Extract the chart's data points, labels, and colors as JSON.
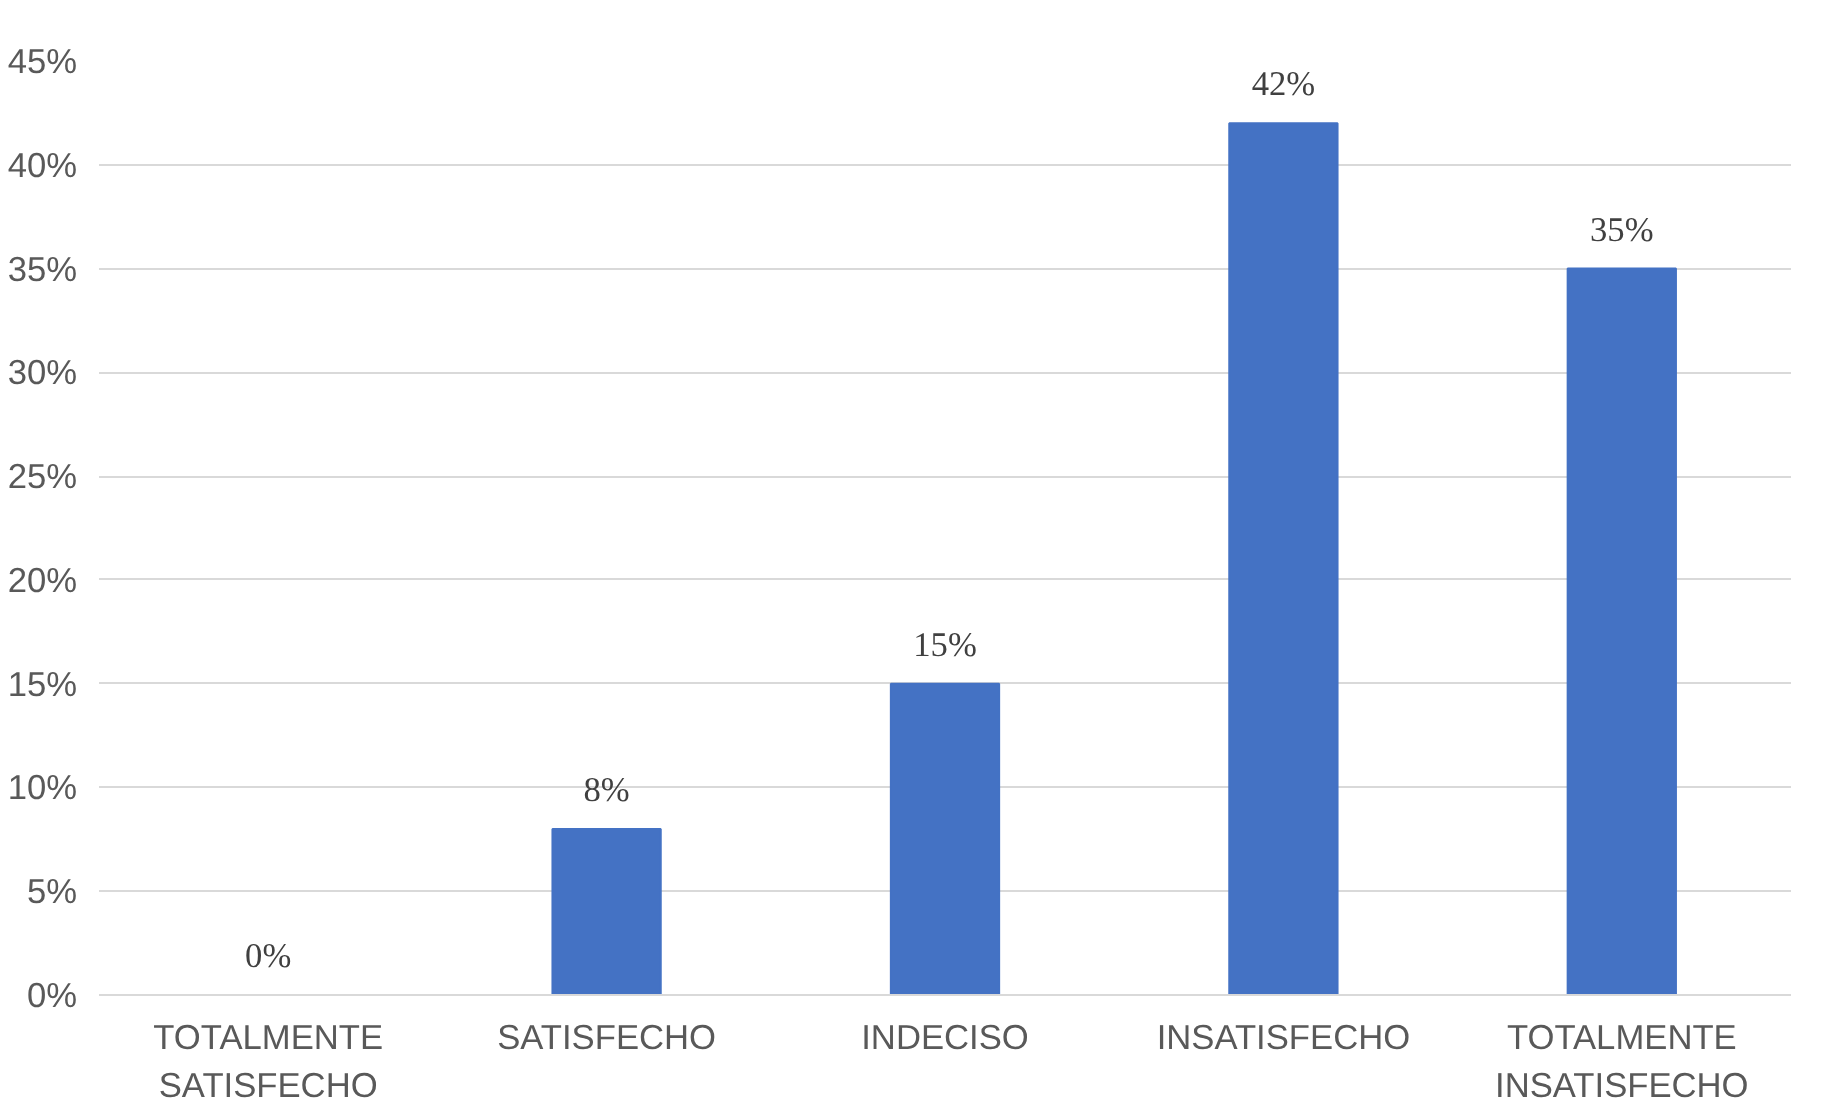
{
  "chart_data": {
    "type": "bar",
    "categories": [
      "TOTALMENTE SATISFECHO",
      "SATISFECHO",
      "INDECISO",
      "INSATISFECHO",
      "TOTALMENTE INSATISFECHO"
    ],
    "values": [
      0,
      8,
      15,
      42,
      35
    ],
    "color": "#4472c4",
    "value_labels": [
      "0%",
      "8%",
      "15%",
      "42%",
      "35%"
    ],
    "ylim": [
      0,
      45
    ],
    "yticks": [
      {
        "value": 0,
        "label": "0%"
      },
      {
        "value": 5,
        "label": "5%"
      },
      {
        "value": 10,
        "label": "10%"
      },
      {
        "value": 15,
        "label": "15%"
      },
      {
        "value": 20,
        "label": "20%"
      },
      {
        "value": 25,
        "label": "25%"
      },
      {
        "value": 30,
        "label": "30%"
      },
      {
        "value": 35,
        "label": "35%"
      },
      {
        "value": 40,
        "label": "40%"
      },
      {
        "value": 45,
        "label": "45%"
      }
    ],
    "grid": "y"
  }
}
